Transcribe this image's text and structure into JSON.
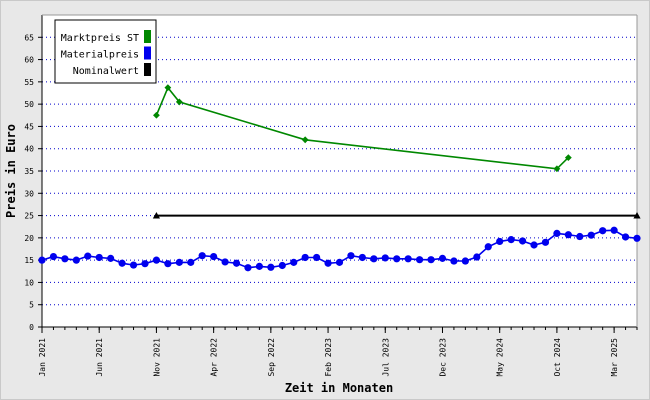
{
  "chart_data": {
    "type": "line",
    "title": "",
    "xlabel": "Zeit in Monaten",
    "ylabel": "Preis in Euro",
    "ylim": [
      0,
      70
    ],
    "yticks": [
      0,
      5,
      10,
      15,
      20,
      25,
      30,
      35,
      40,
      45,
      50,
      55,
      60,
      65
    ],
    "xlim": [
      "2021-01",
      "2025-05"
    ],
    "xticks": [
      {
        "label": "Jan 2021",
        "x": "2021-01"
      },
      {
        "label": "Jun 2021",
        "x": "2021-06"
      },
      {
        "label": "Nov 2021",
        "x": "2021-11"
      },
      {
        "label": "Apr 2022",
        "x": "2022-04"
      },
      {
        "label": "Sep 2022",
        "x": "2022-09"
      },
      {
        "label": "Feb 2023",
        "x": "2023-02"
      },
      {
        "label": "Jul 2023",
        "x": "2023-07"
      },
      {
        "label": "Dec 2023",
        "x": "2023-12"
      },
      {
        "label": "May 2024",
        "x": "2024-05"
      },
      {
        "label": "Oct 2024",
        "x": "2024-10"
      },
      {
        "label": "Mar 2025",
        "x": "2025-03"
      }
    ],
    "grid": "horizontal dotted",
    "legend_position": "top-left",
    "series": [
      {
        "name": "Marktpreis ST",
        "color": "#008800",
        "marker": "diamond",
        "x": [
          "2021-11",
          "2021-12",
          "2022-01",
          "2022-12",
          "2024-10",
          "2024-11"
        ],
        "y": [
          47.5,
          53.7,
          50.5,
          42.0,
          35.5,
          38.0
        ]
      },
      {
        "name": "Materialpreis",
        "color": "#0000ee",
        "marker": "circle",
        "x": [
          "2021-01",
          "2021-02",
          "2021-03",
          "2021-04",
          "2021-05",
          "2021-06",
          "2021-07",
          "2021-08",
          "2021-09",
          "2021-10",
          "2021-11",
          "2021-12",
          "2022-01",
          "2022-02",
          "2022-03",
          "2022-04",
          "2022-05",
          "2022-06",
          "2022-07",
          "2022-08",
          "2022-09",
          "2022-10",
          "2022-11",
          "2022-12",
          "2023-01",
          "2023-02",
          "2023-03",
          "2023-04",
          "2023-05",
          "2023-06",
          "2023-07",
          "2023-08",
          "2023-09",
          "2023-10",
          "2023-11",
          "2023-12",
          "2024-01",
          "2024-02",
          "2024-03",
          "2024-04",
          "2024-05",
          "2024-06",
          "2024-07",
          "2024-08",
          "2024-09",
          "2024-10",
          "2024-11",
          "2024-12",
          "2025-01",
          "2025-02",
          "2025-03",
          "2025-04",
          "2025-05"
        ],
        "y": [
          15.0,
          15.8,
          15.3,
          15.0,
          15.9,
          15.6,
          15.4,
          14.3,
          13.9,
          14.2,
          15.0,
          14.2,
          14.5,
          14.5,
          16.0,
          15.8,
          14.6,
          14.3,
          13.3,
          13.6,
          13.4,
          13.8,
          14.5,
          15.6,
          15.6,
          14.3,
          14.5,
          16.0,
          15.6,
          15.3,
          15.5,
          15.3,
          15.3,
          15.1,
          15.1,
          15.4,
          14.8,
          14.8,
          15.7,
          18.0,
          19.2,
          19.6,
          19.3,
          18.4,
          19.0,
          21.0,
          20.7,
          20.3,
          20.6,
          21.6,
          21.7,
          20.2,
          19.9
        ]
      },
      {
        "name": "Nominalwert",
        "color": "#000000",
        "marker": "triangle",
        "x": [
          "2021-11",
          "2025-05"
        ],
        "y": [
          25,
          25
        ]
      }
    ]
  }
}
